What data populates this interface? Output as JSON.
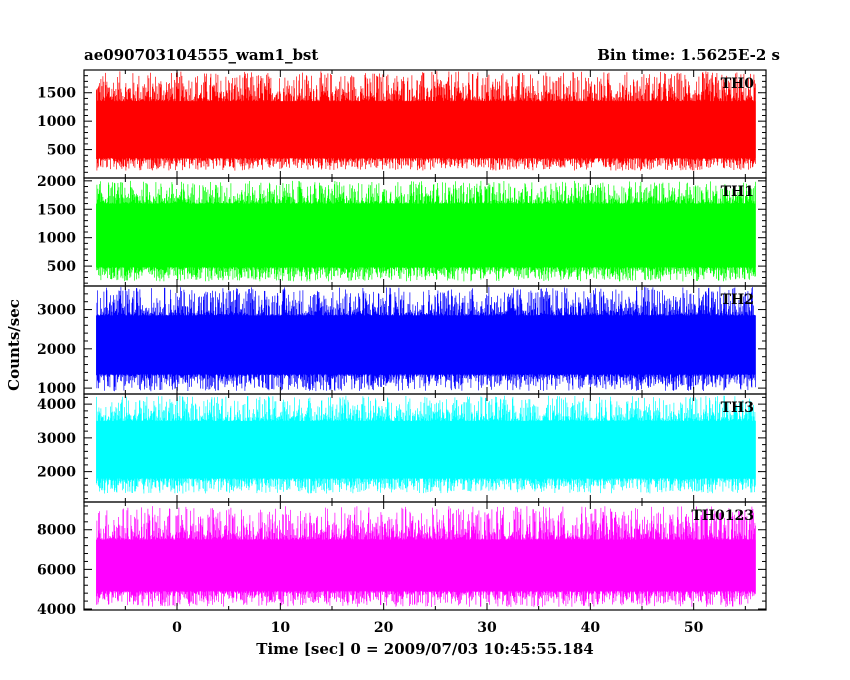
{
  "chart_data": {
    "type": "line",
    "title": "ae090703104555_wam1_bst",
    "subtitle": "Bin time: 1.5625E-2 s",
    "xlabel": "Time [sec] 0 = 2009/07/03 10:45:55.184",
    "ylabel": "Counts/sec",
    "xlim": [
      -9,
      57
    ],
    "x_range_data": [
      -7.8,
      56
    ],
    "x_ticks": [
      0,
      10,
      20,
      30,
      40,
      50
    ],
    "x_tick_labels": [
      "0",
      "10",
      "20",
      "30",
      "40",
      "50"
    ],
    "panels": [
      {
        "name": "TH0",
        "color": "#ff0000",
        "ylim": [
          0,
          1900
        ],
        "y_ticks": [
          500,
          1000,
          1500
        ],
        "y_tick_labels": [
          "500",
          "1000",
          "1500"
        ],
        "band": {
          "low": 350,
          "high": 1350
        },
        "range": {
          "min": 130,
          "max": 1880
        }
      },
      {
        "name": "TH1",
        "color": "#00ff00",
        "ylim": [
          150,
          2050
        ],
        "y_ticks": [
          500,
          1000,
          1500,
          2000
        ],
        "y_tick_labels": [
          "500",
          "1000",
          "1500",
          "2000"
        ],
        "band": {
          "low": 480,
          "high": 1600
        },
        "range": {
          "min": 230,
          "max": 2000
        }
      },
      {
        "name": "TH2",
        "color": "#0000ff",
        "ylim": [
          850,
          3600
        ],
        "y_ticks": [
          1000,
          2000,
          3000
        ],
        "y_tick_labels": [
          "1000",
          "2000",
          "3000"
        ],
        "band": {
          "low": 1350,
          "high": 2850
        },
        "range": {
          "min": 920,
          "max": 3580
        }
      },
      {
        "name": "TH3",
        "color": "#00ffff",
        "ylim": [
          1100,
          4300
        ],
        "y_ticks": [
          2000,
          3000,
          4000
        ],
        "y_tick_labels": [
          "2000",
          "3000",
          "4000"
        ],
        "band": {
          "low": 1800,
          "high": 3500
        },
        "range": {
          "min": 1350,
          "max": 4250
        }
      },
      {
        "name": "TH0123",
        "color": "#ff00ff",
        "ylim": [
          3950,
          9400
        ],
        "y_ticks": [
          4000,
          6000,
          8000
        ],
        "y_tick_labels": [
          "4000",
          "6000",
          "8000"
        ],
        "band": {
          "low": 4900,
          "high": 7500
        },
        "range": {
          "min": 4100,
          "max": 9200
        }
      }
    ],
    "grid": false,
    "legend": "none"
  }
}
